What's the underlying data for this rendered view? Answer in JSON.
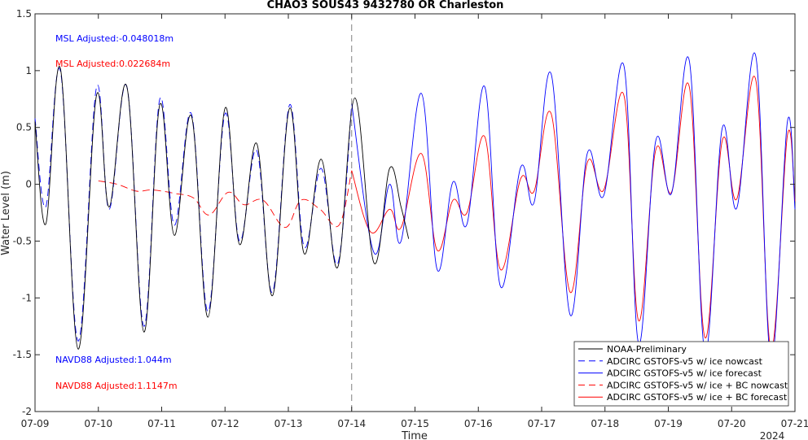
{
  "chart_data": {
    "type": "line",
    "title": "CHAO3 SOUS43 9432780 OR Charleston",
    "xlabel": "Time",
    "ylabel": "Water Level (m)",
    "year_label": "2024",
    "xlim": [
      0,
      12
    ],
    "ylim": [
      -2,
      1.5
    ],
    "x_ticks": [
      {
        "label": "07-09",
        "value": 0
      },
      {
        "label": "07-10",
        "value": 1
      },
      {
        "label": "07-11",
        "value": 2
      },
      {
        "label": "07-12",
        "value": 3
      },
      {
        "label": "07-13",
        "value": 4
      },
      {
        "label": "07-14",
        "value": 5
      },
      {
        "label": "07-15",
        "value": 6
      },
      {
        "label": "07-16",
        "value": 7
      },
      {
        "label": "07-17",
        "value": 8
      },
      {
        "label": "07-18",
        "value": 9
      },
      {
        "label": "07-19",
        "value": 10
      },
      {
        "label": "07-20",
        "value": 11
      },
      {
        "label": "07-21",
        "value": 12
      }
    ],
    "y_ticks": [
      {
        "label": "1.5",
        "value": 1.5
      },
      {
        "label": "1",
        "value": 1
      },
      {
        "label": "0.5",
        "value": 0.5
      },
      {
        "label": "0",
        "value": 0
      },
      {
        "label": "-0.5",
        "value": -0.5
      },
      {
        "label": "-1",
        "value": -1
      },
      {
        "label": "-1.5",
        "value": -1.5
      },
      {
        "label": "-2",
        "value": -2
      }
    ],
    "grid": false,
    "legend_position": "bottom-right",
    "nowcast_divider_x": 5,
    "annotations": [
      {
        "text": "MSL Adjusted:-0.048018m",
        "color": "#0000ff"
      },
      {
        "text": "MSL Adjusted:0.022684m",
        "color": "#ff0000"
      },
      {
        "text": "NAVD88 Adjusted:1.044m",
        "color": "#0000ff"
      },
      {
        "text": "NAVD88 Adjusted:1.1147m",
        "color": "#ff0000"
      }
    ],
    "series": [
      {
        "name": "NOAA-Preliminary",
        "color": "#000000",
        "dash": "solid",
        "x": [
          0,
          0.17,
          0.4,
          0.68,
          0.97,
          1.17,
          1.45,
          1.72,
          1.97,
          2.2,
          2.47,
          2.73,
          3.0,
          3.23,
          3.5,
          3.75,
          4.02,
          4.25,
          4.52,
          4.78,
          5.05,
          5.35,
          5.6,
          5.78,
          5.9
        ],
        "y": [
          0.55,
          -0.35,
          1.02,
          -1.45,
          0.78,
          -0.2,
          0.86,
          -1.3,
          0.7,
          -0.45,
          0.6,
          -1.17,
          0.67,
          -0.53,
          0.36,
          -0.98,
          0.67,
          -0.61,
          0.22,
          -0.73,
          0.76,
          -0.69,
          0.14,
          -0.2,
          -0.48
        ]
      },
      {
        "name": "ADCIRC GSTOFS-v5 w/ ice nowcast",
        "color": "#0000ff",
        "dash": "dashed",
        "x": [
          0,
          0.17,
          0.4,
          0.68,
          0.97,
          1.17,
          1.45,
          1.72,
          1.97,
          2.2,
          2.47,
          2.73,
          3.0,
          3.23,
          3.5,
          3.75,
          4.02,
          4.25,
          4.52,
          4.78,
          5.0
        ],
        "y": [
          0.58,
          -0.2,
          1.0,
          -1.38,
          0.85,
          -0.22,
          0.86,
          -1.25,
          0.75,
          -0.36,
          0.62,
          -1.12,
          0.62,
          -0.5,
          0.3,
          -0.95,
          0.7,
          -0.55,
          0.14,
          -0.7,
          0.71
        ]
      },
      {
        "name": "ADCIRC GSTOFS-v5 w/ ice forecast",
        "color": "#0000ff",
        "dash": "solid",
        "x": [
          5.0,
          5.35,
          5.6,
          5.78,
          6.1,
          6.35,
          6.6,
          6.82,
          7.1,
          7.35,
          7.67,
          7.88,
          8.15,
          8.45,
          8.72,
          8.98,
          9.3,
          9.53,
          9.8,
          10.05,
          10.33,
          10.58,
          10.85,
          11.08,
          11.38,
          11.62,
          11.88,
          12.0
        ],
        "y": [
          0.71,
          -0.6,
          0.0,
          -0.5,
          0.8,
          -0.75,
          0.02,
          -0.35,
          0.86,
          -0.9,
          0.15,
          -0.16,
          0.97,
          -1.15,
          0.27,
          -0.1,
          1.04,
          -1.4,
          0.38,
          -0.08,
          1.09,
          -1.48,
          0.49,
          -0.21,
          1.13,
          -1.55,
          0.55,
          -0.22
        ]
      },
      {
        "name": "ADCIRC GSTOFS-v5 w/ ice + BC nowcast",
        "color": "#ff0000",
        "dash": "dashed",
        "x": [
          1.0,
          1.3,
          1.6,
          1.85,
          2.2,
          2.5,
          2.75,
          3.05,
          3.3,
          3.6,
          3.95,
          4.2,
          4.5,
          4.8,
          5.0
        ],
        "y": [
          0.03,
          0.0,
          -0.06,
          -0.05,
          -0.08,
          -0.12,
          -0.27,
          -0.07,
          -0.18,
          -0.14,
          -0.38,
          -0.14,
          -0.22,
          -0.36,
          0.12
        ]
      },
      {
        "name": "ADCIRC GSTOFS-v5 w/ ice + BC forecast",
        "color": "#ff0000",
        "dash": "solid",
        "x": [
          5.0,
          5.3,
          5.6,
          5.78,
          6.1,
          6.35,
          6.6,
          6.82,
          7.1,
          7.35,
          7.67,
          7.88,
          8.15,
          8.45,
          8.72,
          8.98,
          9.3,
          9.53,
          9.8,
          10.05,
          10.33,
          10.58,
          10.85,
          11.08,
          11.38,
          11.62,
          11.88,
          12.0
        ],
        "y": [
          0.12,
          -0.42,
          -0.22,
          -0.38,
          0.27,
          -0.58,
          -0.14,
          -0.25,
          0.42,
          -0.75,
          0.05,
          -0.06,
          0.62,
          -0.95,
          0.19,
          -0.05,
          0.78,
          -1.2,
          0.3,
          -0.07,
          0.86,
          -1.35,
          0.38,
          -0.13,
          0.92,
          -1.45,
          0.43,
          -0.15
        ]
      }
    ]
  }
}
